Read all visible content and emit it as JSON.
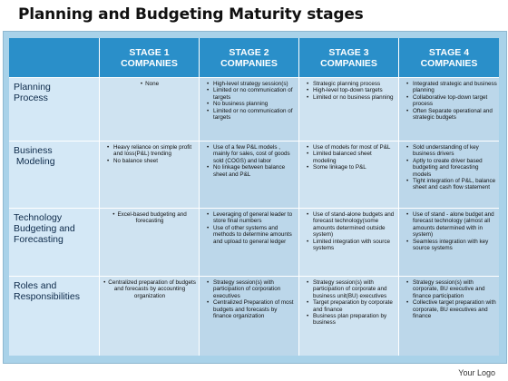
{
  "title": "Planning and Budgeting Maturity stages",
  "columns": [
    [
      "STAGE 1",
      "COMPANIES"
    ],
    [
      "STAGE 2",
      "COMPANIES"
    ],
    [
      "STAGE 3",
      "COMPANIES"
    ],
    [
      "STAGE 4",
      "COMPANIES"
    ]
  ],
  "rows": [
    {
      "label": [
        "Planning",
        "Process"
      ],
      "cells": [
        [
          "None"
        ],
        [
          "High-level strategy session(s)",
          "Limited or no communication of targets",
          "No business planning",
          "Limited or no communication of targets"
        ],
        [
          "Strategic planning process",
          "High-level top-down targets",
          "Limited or no business planning"
        ],
        [
          "Integrated strategic and business planning",
          "Collaborative top-down target process",
          "Often Separate operational and strategic budgets"
        ]
      ]
    },
    {
      "label": [
        "Business",
        " Modeling"
      ],
      "cells": [
        [
          "Heavy reliance on simple profit and loss(P&L) trending",
          "No balance sheet"
        ],
        [
          "Use of a few P&L models , mainly for sales, cost of goods sold (COGS) and labor",
          "No linkage between balance sheet and P&L"
        ],
        [
          "Use of models for most of P&L",
          "Limited balanced sheet modeling",
          "Some linkage to P&L"
        ],
        [
          "Sold understanding of key business drivers",
          "Aptly to create driver based budgeting and forecasting models",
          "Tight integration of P&L, balance sheet and cash flow statement"
        ]
      ]
    },
    {
      "label": [
        "Technology",
        "Budgeting and",
        "Forecasting"
      ],
      "cells": [
        [
          "Excel-based budgeting and forecasting"
        ],
        [
          "Leveraging of general leader to store final numbers",
          "Use of other systems and methods to determine amounts and upload to general ledger"
        ],
        [
          "Use of stand-alone budgets and forecast technology(some amounts determined outside system)",
          "Limited integration with source systems"
        ],
        [
          "Use of stand - alone budget and forecast technology (almost all amounts determined with in system)",
          "Seamless integration with key source systems"
        ]
      ]
    },
    {
      "label": [
        "Roles and",
        "Responsibilities"
      ],
      "cells": [
        [
          "Centralized preparation of budgets and forecasts by accounting organization"
        ],
        [
          "Strategy session(s) with participation of corporation executives",
          "Centralized Preparation of most budgets and forecasts by finance organization"
        ],
        [
          "Strategy session(s) with participation of corporate and business unit(BU) executives",
          "Target preparation by corporate and finance",
          "Business plan preparation by business"
        ],
        [
          "Strategy session(s) with corporate, BU executive and finance participation",
          "Collective target preparation with corporate, BU executives and finance"
        ]
      ]
    }
  ],
  "footer": {
    "logo": "Your Logo"
  }
}
